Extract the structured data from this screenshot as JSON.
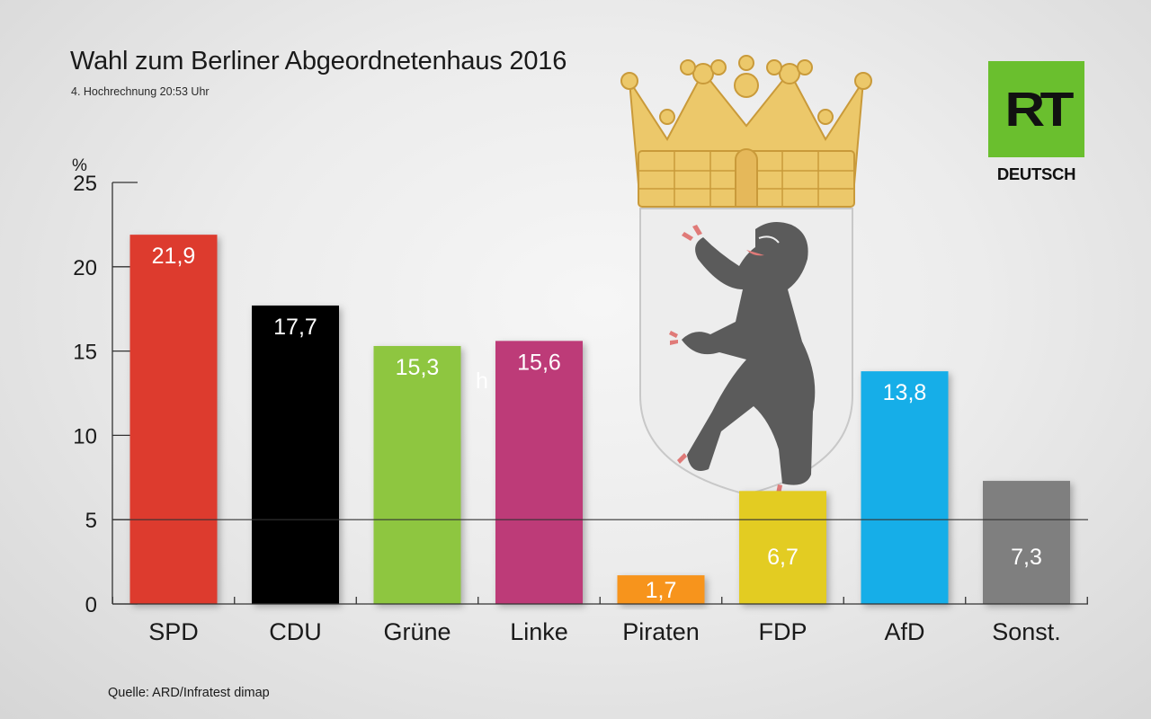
{
  "header": {
    "title": "Wahl zum Berliner Abgeordnetenhaus 2016",
    "subtitle": "4. Hochrechnung 20:53 Uhr"
  },
  "footer": {
    "source": "Quelle: ARD/Infratest dimap"
  },
  "logo": {
    "mark": "RT",
    "label": "DEUTSCH",
    "color": "#6abf2e"
  },
  "emblem": {
    "name": "berlin-coat-of-arms-icon",
    "crown_color": "#ecc86a",
    "shield_color": "#ededed",
    "bear_color": "#5b5b5b",
    "claw_color": "#e07a78"
  },
  "chart_data": {
    "type": "bar",
    "title": "Wahl zum Berliner Abgeordnetenhaus 2016",
    "subtitle": "4. Hochrechnung 20:53 Uhr",
    "xlabel": "",
    "ylabel": "%",
    "categories": [
      "SPD",
      "CDU",
      "Grüne",
      "Linke",
      "Piraten",
      "FDP",
      "AfD",
      "Sonst."
    ],
    "values": [
      21.9,
      17.7,
      15.3,
      15.6,
      1.7,
      6.7,
      13.8,
      7.3
    ],
    "value_labels": [
      "21,9",
      "17,7",
      "15,3",
      "15,6",
      "1,7",
      "6,7",
      "13,8",
      "7,3"
    ],
    "colors": [
      "#dd3a2f",
      "#000000",
      "#8ec63f",
      "#bd3a78",
      "#f7941d",
      "#e3cc20",
      "#17aee8",
      "#7f7f7f"
    ],
    "ylim": [
      0,
      25
    ],
    "yticks": [
      0,
      5,
      10,
      15,
      20,
      25
    ],
    "reference_line": 5,
    "stray_text": "h",
    "grid": false,
    "legend": "none"
  }
}
